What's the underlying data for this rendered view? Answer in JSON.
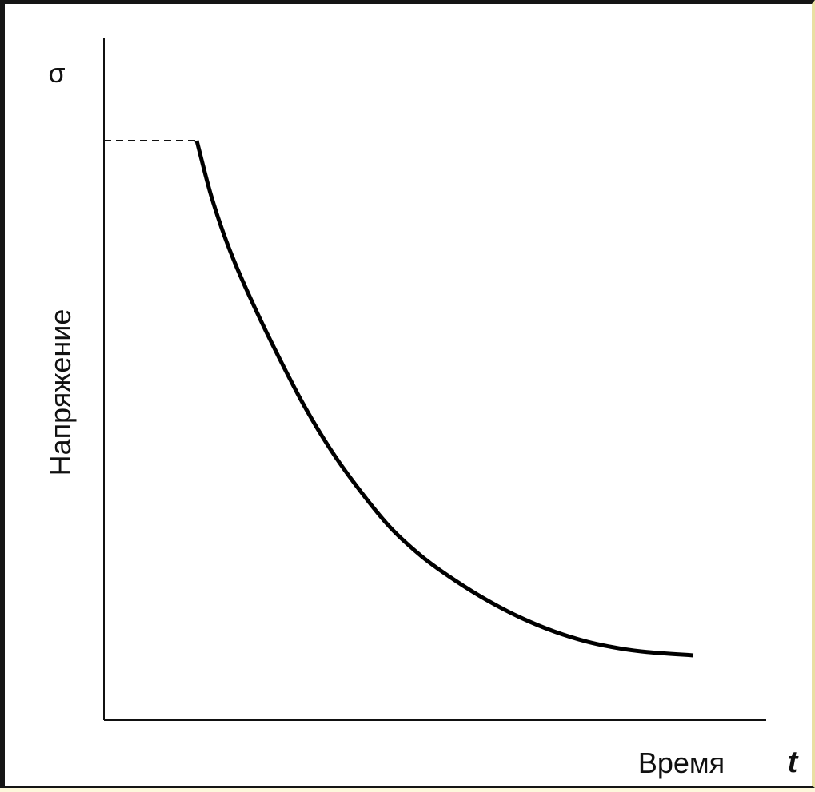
{
  "chart_data": {
    "type": "line",
    "title": "",
    "ylabel": "Напряжение",
    "y_symbol": "σ",
    "xlabel": "Время",
    "x_symbol": "t",
    "grid": false,
    "legend": "none",
    "xlim": [
      0,
      10
    ],
    "ylim": [
      0,
      10
    ],
    "initial_level": {
      "y": 8.5,
      "x_end": 1.4,
      "style": "dashed"
    },
    "series": [
      {
        "style": "solid",
        "color": "#000000",
        "x": [
          1.4,
          1.6,
          1.8,
          2.0,
          2.3,
          2.6,
          3.0,
          3.4,
          3.8,
          4.3,
          4.8,
          5.3,
          5.8,
          6.3,
          6.8,
          7.3,
          7.8,
          8.2,
          8.9
        ],
        "y": [
          8.5,
          7.75,
          7.15,
          6.65,
          6.0,
          5.4,
          4.65,
          4.0,
          3.45,
          2.85,
          2.4,
          2.05,
          1.75,
          1.5,
          1.3,
          1.15,
          1.05,
          1.0,
          0.95
        ]
      }
    ]
  }
}
